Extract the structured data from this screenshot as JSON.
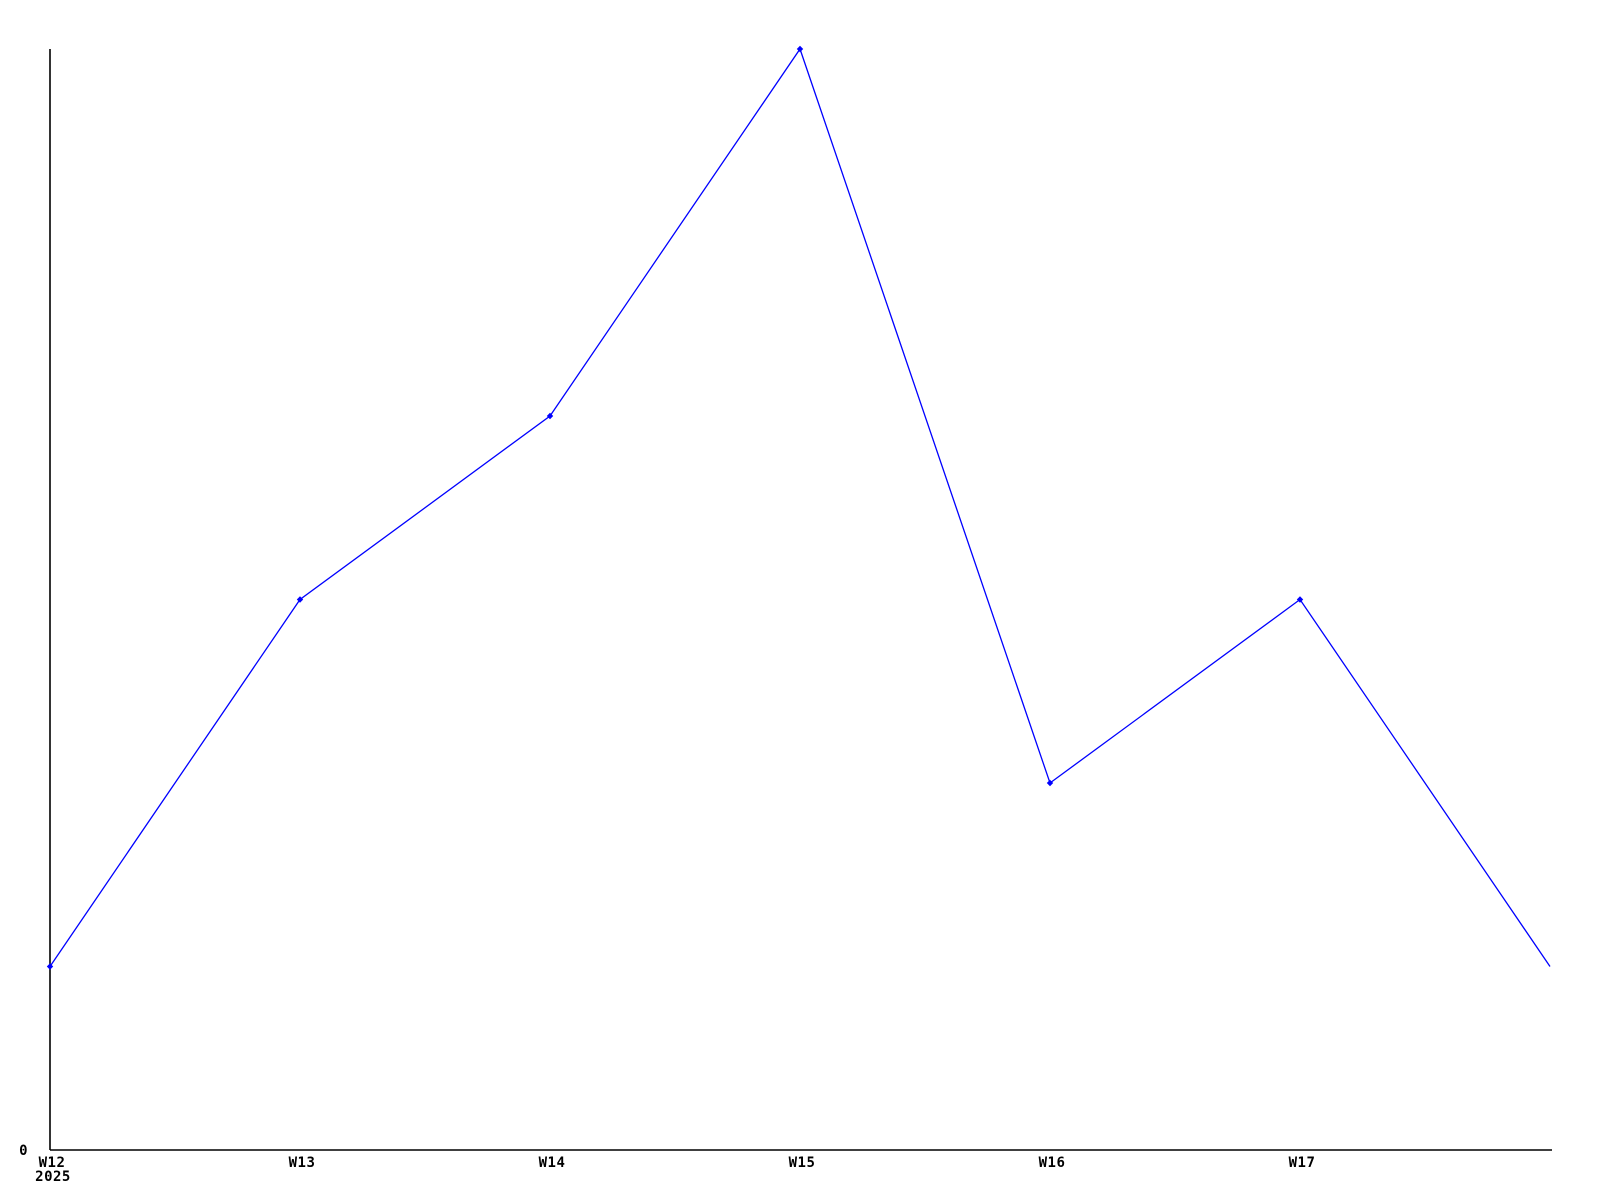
{
  "chart_data": {
    "type": "line",
    "title": "",
    "xlabel": "",
    "ylabel": "",
    "categories": [
      "W12",
      "W13",
      "W14",
      "W15",
      "W16",
      "W17",
      ""
    ],
    "values": [
      1,
      3,
      4,
      6,
      2,
      3,
      1
    ],
    "markers": [
      true,
      true,
      true,
      true,
      true,
      true,
      false
    ],
    "marker_shape": "diamond",
    "ylim": [
      0,
      6
    ],
    "grid": false,
    "legend_position": "none",
    "origin_label": "0",
    "year_label": "2025",
    "line_color": "#0000ff",
    "axis_color": "#000000",
    "label_color": "#000000",
    "background_color": "#ffffff"
  }
}
